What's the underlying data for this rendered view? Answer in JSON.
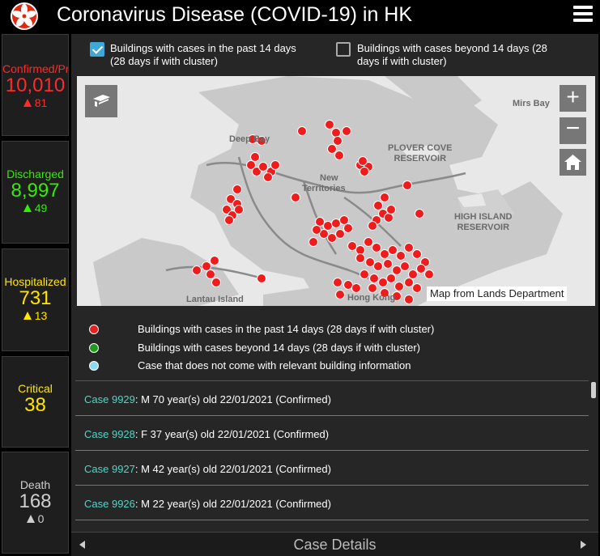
{
  "header": {
    "title": "Coronavirus Disease (COVID-19) in HK",
    "logo_icon": "bauhinia-flower-icon",
    "menu_icon": "hamburger-menu-icon"
  },
  "stats": {
    "confirmed": {
      "label": "Confirmed/Prob",
      "value": "10,010",
      "delta": "81",
      "color": "#ff2a2a"
    },
    "discharged": {
      "label": "Discharged",
      "value": "8,997",
      "delta": "49",
      "color": "#33ee00"
    },
    "hospitalized": {
      "label": "Hospitalized",
      "value": "731",
      "delta": "13",
      "color": "#ffe600"
    },
    "critical": {
      "label": "Critical",
      "value": "38",
      "color": "#ffe600"
    },
    "death": {
      "label": "Death",
      "value": "168",
      "delta": "0",
      "color": "#cfcfcf"
    }
  },
  "toggles": {
    "recent": {
      "label_line1": "Buildings with cases in the past 14 days",
      "label_line2": "(28 days if with cluster)",
      "checked": true
    },
    "older": {
      "label_line1": "Buildings with cases beyond 14 days (28",
      "label_line2": "days if with cluster)",
      "checked": false
    }
  },
  "map": {
    "attribution": "Map from Lands Department",
    "places": {
      "deep_bay": "Deep Bay",
      "new_territories_1": "New",
      "new_territories_2": "Territories",
      "mirs_bay": "Mirs Bay",
      "plover_1": "PLOVER COVE",
      "plover_2": "RESERVOIR",
      "high_island_1": "HIGH ISLAND",
      "high_island_2": "RESERVOIR",
      "lantau": "Lantau Island",
      "hong_kong": "Hong Kong"
    },
    "controls": {
      "zoom_in": "+",
      "zoom_out": "−"
    },
    "marker_color": "#ee1c1c"
  },
  "legend": [
    {
      "label": "Buildings with cases in the past 14 days (28 days if with cluster)",
      "color": "#e52020"
    },
    {
      "label": "Buildings with cases beyond 14 days (28 days if with cluster)",
      "color": "#1f9a1f"
    },
    {
      "label": "Case that does not come with relevant building information",
      "color": "#8fd8f0"
    }
  ],
  "cases": [
    {
      "case": "Case 9929",
      "detail": ": M  70 year(s) old  22/01/2021 (Confirmed)"
    },
    {
      "case": "Case 9928",
      "detail": ": F  37 year(s) old  22/01/2021 (Confirmed)"
    },
    {
      "case": "Case 9927",
      "detail": ": M  42 year(s) old  22/01/2021 (Confirmed)"
    },
    {
      "case": "Case 9926",
      "detail": ": M  22 year(s) old  22/01/2021 (Confirmed)"
    }
  ],
  "footer": {
    "title": "Case Details"
  }
}
